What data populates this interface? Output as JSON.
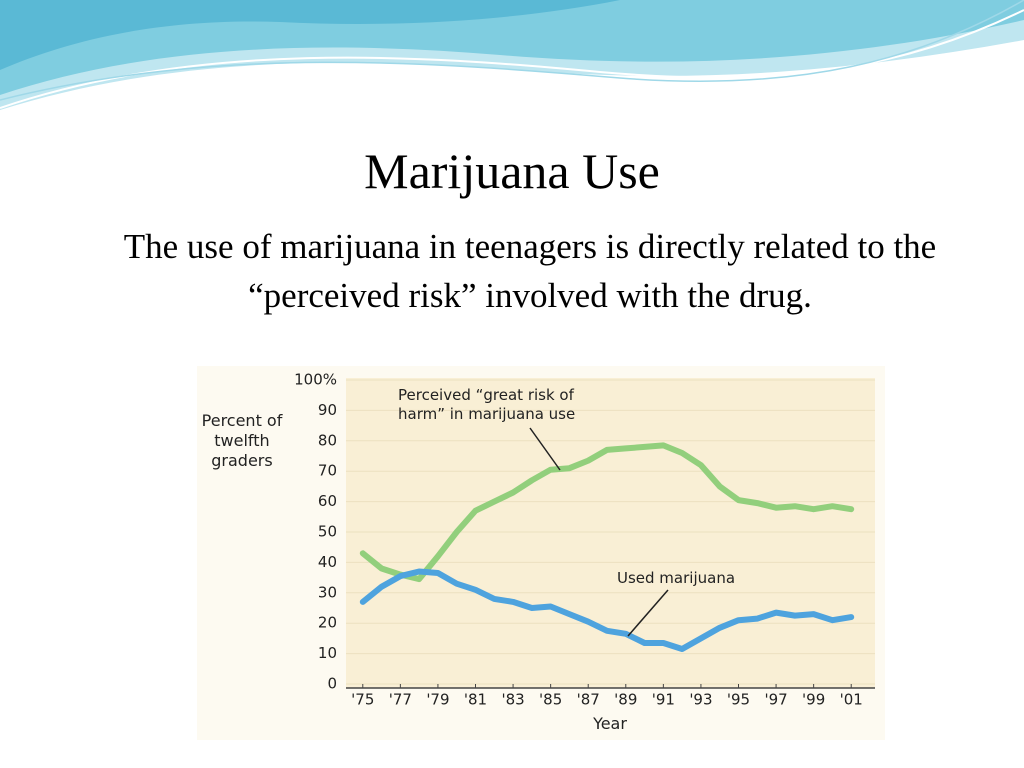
{
  "slide_title": "Marijuana Use",
  "slide_text": "The use of marijuana in teenagers is directly related to the “perceived risk” involved with the drug.",
  "chart_data": {
    "type": "line",
    "ylabel": "Percent of twelfth graders",
    "xlabel": "Year",
    "x": [
      1975,
      1976,
      1977,
      1978,
      1979,
      1980,
      1981,
      1982,
      1983,
      1984,
      1985,
      1986,
      1987,
      1988,
      1989,
      1990,
      1991,
      1992,
      1993,
      1994,
      1995,
      1996,
      1997,
      1998,
      1999,
      2000,
      2001
    ],
    "series": [
      {
        "name": "Perceived “great risk of harm” in marijuana use",
        "color": "#92cf7c",
        "values": [
          43,
          38,
          36,
          34.5,
          42,
          50,
          57,
          60,
          63,
          67,
          70.5,
          71,
          73.5,
          77,
          77.5,
          78,
          78.5,
          76,
          72,
          65,
          60.5,
          59.5,
          58,
          58.5,
          57.5,
          58.5,
          57.5
        ]
      },
      {
        "name": "Used marijuana",
        "color": "#4ea3de",
        "values": [
          27,
          32,
          35.5,
          37,
          36.5,
          33,
          31,
          28,
          27,
          25,
          25.5,
          23,
          20.5,
          17.5,
          16.5,
          13.5,
          13.5,
          11.5,
          15,
          18.5,
          21,
          21.5,
          23.5,
          22.5,
          23,
          21,
          22
        ]
      }
    ],
    "xlim": [
      1974,
      2002
    ],
    "xticks": [
      {
        "value": 1975,
        "label": "'75"
      },
      {
        "value": 1977,
        "label": "'77"
      },
      {
        "value": 1979,
        "label": "'79"
      },
      {
        "value": 1981,
        "label": "'81"
      },
      {
        "value": 1983,
        "label": "'83"
      },
      {
        "value": 1985,
        "label": "'85"
      },
      {
        "value": 1987,
        "label": "'87"
      },
      {
        "value": 1989,
        "label": "'89"
      },
      {
        "value": 1991,
        "label": "'91"
      },
      {
        "value": 1993,
        "label": "'93"
      },
      {
        "value": 1995,
        "label": "'95"
      },
      {
        "value": 1997,
        "label": "'97"
      },
      {
        "value": 1999,
        "label": "'99"
      },
      {
        "value": 2001,
        "label": "'01"
      }
    ],
    "ylim": [
      0,
      100
    ],
    "yticks": [
      0,
      10,
      20,
      30,
      40,
      50,
      60,
      70,
      80,
      90,
      {
        "value": 100,
        "label": "100%"
      }
    ],
    "grid": true
  }
}
